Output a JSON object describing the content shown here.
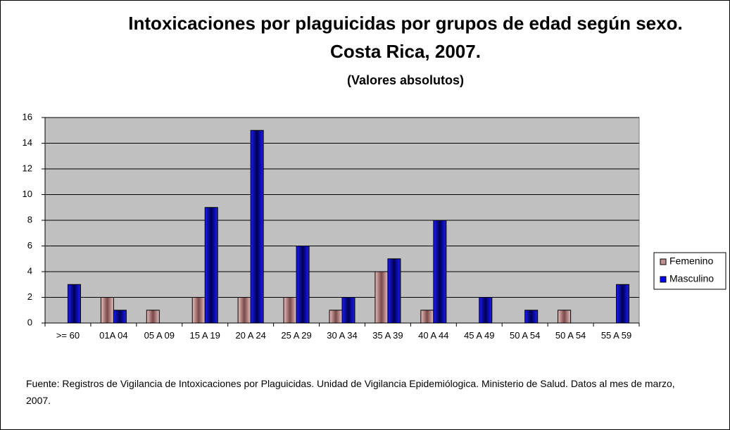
{
  "chart_data": {
    "type": "bar",
    "title": "Intoxicaciones por plaguicidas por grupos de edad según sexo. Costa Rica, 2007.",
    "subtitle": "(Valores absolutos)",
    "categories": [
      ">= 60",
      "01A 04",
      "05 A 09",
      "15 A 19",
      "20 A 24",
      "25 A 29",
      "30 A 34",
      "35 A 39",
      "40 A 44",
      "45 A 49",
      "50 A 54",
      "50 A 54",
      "55 A 59"
    ],
    "series": [
      {
        "name": "Femenino",
        "color": "#c09090",
        "values": [
          0,
          2,
          1,
          2,
          2,
          2,
          1,
          4,
          1,
          0,
          0,
          1,
          0
        ]
      },
      {
        "name": "Masculino",
        "color": "#0000ff",
        "values": [
          3,
          1,
          0,
          9,
          15,
          6,
          2,
          5,
          8,
          2,
          1,
          0,
          3
        ]
      }
    ],
    "ylim": [
      0,
      16
    ],
    "yticks": [
      0,
      2,
      4,
      6,
      8,
      10,
      12,
      14,
      16
    ],
    "grid": true,
    "legend": "right",
    "source": "Fuente: Registros de Vigilancia de Intoxicaciones por Plaguicidas. Unidad de Vigilancia Epidemiólogica. Ministerio de Salud.  Datos al mes de marzo, 2007."
  }
}
